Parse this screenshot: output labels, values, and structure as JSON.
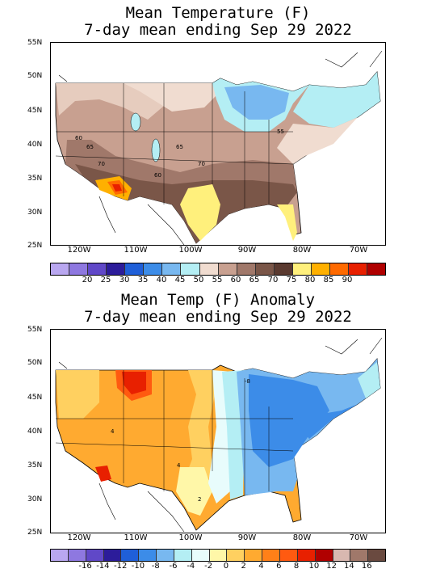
{
  "panels": [
    {
      "title_line1": "Mean Temperature (F)",
      "title_line2": "7-day mean ending Sep 29 2022",
      "y_labels": [
        "55N",
        "50N",
        "45N",
        "40N",
        "35N",
        "30N",
        "25N"
      ],
      "x_labels": [
        "120W",
        "110W",
        "100W",
        "90W",
        "80W",
        "70W"
      ],
      "contour_labels": [
        "60",
        "65",
        "70",
        "60",
        "65",
        "70",
        "55"
      ],
      "colorbar": {
        "colors": [
          "#b9a7f0",
          "#8e78e0",
          "#6048c8",
          "#2c1c9a",
          "#1f5fd8",
          "#3c8ce8",
          "#78b8f0",
          "#b4eef4",
          "#f0dcd0",
          "#c8a090",
          "#a0786a",
          "#7a5648",
          "#5a3a30",
          "#fff07c",
          "#ffb000",
          "#ff6a00",
          "#e82000",
          "#b00000"
        ],
        "labels": [
          "20",
          "25",
          "30",
          "35",
          "40",
          "45",
          "50",
          "55",
          "60",
          "65",
          "70",
          "75",
          "80",
          "85",
          "90"
        ]
      }
    },
    {
      "title_line1": "Mean Temp (F) Anomaly",
      "title_line2": "7-day mean ending Sep 29 2022",
      "y_labels": [
        "55N",
        "50N",
        "45N",
        "40N",
        "35N",
        "30N",
        "25N"
      ],
      "x_labels": [
        "120W",
        "110W",
        "100W",
        "90W",
        "80W",
        "70W"
      ],
      "contour_labels": [
        "4",
        "4",
        "2",
        "-8"
      ],
      "colorbar": {
        "colors": [
          "#b9a7f0",
          "#8e78e0",
          "#6048c8",
          "#2c1c9a",
          "#1f5fd8",
          "#3c8ce8",
          "#78b8f0",
          "#b4eef4",
          "#e8fcfc",
          "#fff7a8",
          "#ffd060",
          "#ffaa30",
          "#ff8018",
          "#ff5a10",
          "#e82000",
          "#b00000",
          "#d8b8b0",
          "#a0786a",
          "#6a4a40"
        ],
        "labels": [
          "-16",
          "-14",
          "-12",
          "-10",
          "-8",
          "-6",
          "-4",
          "-2",
          "0",
          "2",
          "4",
          "6",
          "8",
          "10",
          "12",
          "14",
          "16"
        ]
      }
    }
  ]
}
